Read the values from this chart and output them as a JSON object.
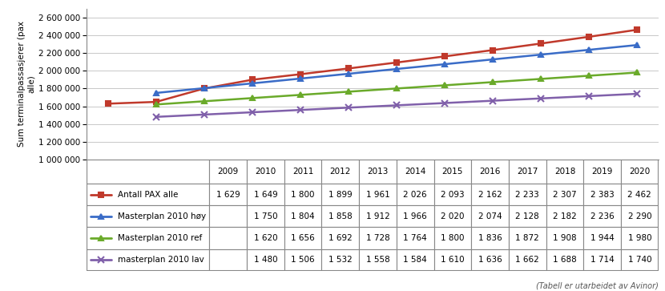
{
  "years": [
    2009,
    2010,
    2011,
    2012,
    2013,
    2014,
    2015,
    2016,
    2017,
    2018,
    2019,
    2020
  ],
  "series": [
    {
      "label": "Antall PAX alle",
      "color": "#c0392b",
      "marker": "s",
      "values": [
        1629,
        1649,
        1800,
        1899,
        1961,
        2026,
        2093,
        2162,
        2233,
        2307,
        2383,
        2462
      ]
    },
    {
      "label": "Masterplan 2010 høy",
      "color": "#3a6cc7",
      "marker": "^",
      "values": [
        null,
        1750,
        1804,
        1858,
        1912,
        1966,
        2020,
        2074,
        2128,
        2182,
        2236,
        2290
      ]
    },
    {
      "label": "Masterplan 2010 ref",
      "color": "#6aaa2a",
      "marker": "^",
      "values": [
        null,
        1620,
        1656,
        1692,
        1728,
        1764,
        1800,
        1836,
        1872,
        1908,
        1944,
        1980
      ]
    },
    {
      "label": "masterplan 2010 lav",
      "color": "#8060aa",
      "marker": "x",
      "values": [
        null,
        1480,
        1506,
        1532,
        1558,
        1584,
        1610,
        1636,
        1662,
        1688,
        1714,
        1740
      ]
    }
  ],
  "table_rows": [
    [
      "Antall PAX alle",
      "1 629",
      "1 649",
      "1 800",
      "1 899",
      "1 961",
      "2 026",
      "2 093",
      "2 162",
      "2 233",
      "2 307",
      "2 383",
      "2 462"
    ],
    [
      "Masterplan 2010 høy",
      "",
      "1 750",
      "1 804",
      "1 858",
      "1 912",
      "1 966",
      "2 020",
      "2 074",
      "2 128",
      "2 182",
      "2 236",
      "2 290"
    ],
    [
      "Masterplan 2010 ref",
      "",
      "1 620",
      "1 656",
      "1 692",
      "1 728",
      "1 764",
      "1 800",
      "1 836",
      "1 872",
      "1 908",
      "1 944",
      "1 980"
    ],
    [
      "masterplan 2010 lav",
      "",
      "1 480",
      "1 506",
      "1 532",
      "1 558",
      "1 584",
      "1 610",
      "1 636",
      "1 662",
      "1 688",
      "1 714",
      "1 740"
    ]
  ],
  "col_headers": [
    "2009",
    "2010",
    "2011",
    "2012",
    "2013",
    "2014",
    "2015",
    "2016",
    "2017",
    "2018",
    "2019",
    "2020"
  ],
  "ylabel": "Sum terminalpassasjerer (pax\nalle)",
  "ylim": [
    1000000,
    2700000
  ],
  "yticks": [
    1000000,
    1200000,
    1400000,
    1600000,
    1800000,
    2000000,
    2200000,
    2400000,
    2600000
  ],
  "scale": 1000,
  "background_color": "#ffffff",
  "grid_color": "#c8c8c8",
  "table_border_color": "#888888",
  "caption": "(Tabell er utarbeidet av Avinor)",
  "series_colors": [
    "#c0392b",
    "#3a6cc7",
    "#6aaa2a",
    "#8060aa"
  ],
  "figsize": [
    8.3,
    3.63
  ],
  "dpi": 100
}
